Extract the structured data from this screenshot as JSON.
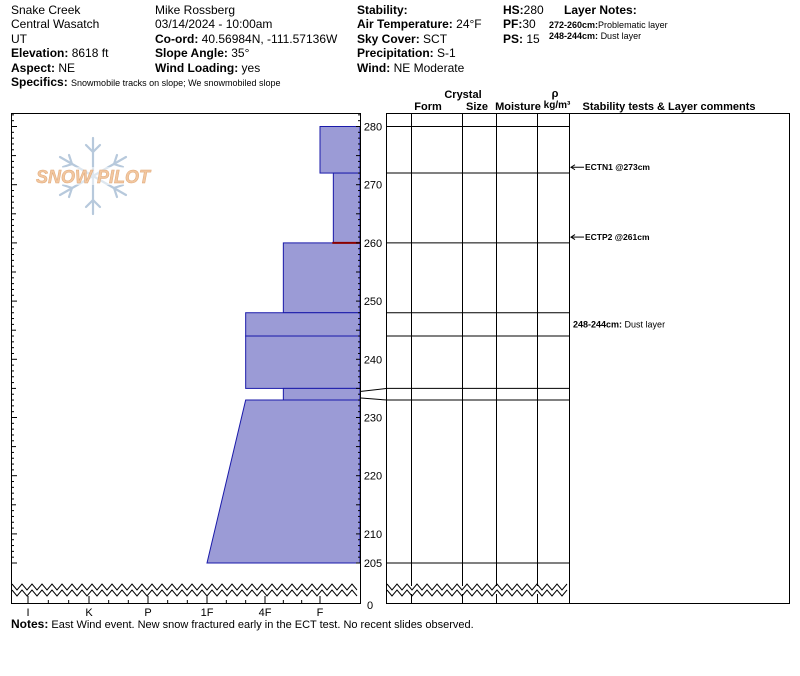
{
  "header": {
    "location": "Snake Creek",
    "range": "Central Wasatch",
    "state": "UT",
    "elevation_label": "Elevation:",
    "elevation": "8618 ft",
    "aspect_label": "Aspect:",
    "aspect": "NE",
    "specifics_label": "Specifics:",
    "specifics": "Snowmobile tracks on slope; We snowmobiled slope",
    "observer": "Mike Rossberg",
    "datetime": "03/14/2024 - 10:00am",
    "coord_label": "Co-ord:",
    "coord": "40.56984N, -111.57136W",
    "slope_label": "Slope Angle:",
    "slope": "35°",
    "wind_loading_label": "Wind Loading:",
    "wind_loading": "yes",
    "stability_label": "Stability:",
    "air_temp_label": "Air Temperature:",
    "air_temp": "24°F",
    "sky_label": "Sky Cover:",
    "sky": "SCT",
    "precip_label": "Precipitation:",
    "precip": "S-1",
    "wind_label": "Wind:",
    "wind": "NE Moderate",
    "hs_label": "HS:",
    "hs": "280",
    "pf_label": "PF:",
    "pf": "30",
    "ps_label": "PS:",
    "ps": "15",
    "layer_notes_label": "Layer Notes:",
    "layer_note_1_range": "272-260cm:",
    "layer_note_1_text": "Problematic layer",
    "layer_note_2_range": "248-244cm:",
    "layer_note_2_text": "Dust layer"
  },
  "logo": {
    "text": "SNOW PILOT"
  },
  "columns": {
    "form": "Form",
    "crystal": "Crystal",
    "size": "Size",
    "moisture": "Moisture",
    "rho": "ρ",
    "density_unit": "kg/m³",
    "stability_comments": "Stability tests & Layer comments"
  },
  "notes": {
    "label": "Notes:",
    "text": "East Wind event. New snow fractured early in the ECT test. No recent slides observed."
  },
  "colors": {
    "hardness_fill": "#9b9bd6",
    "hardness_edge": "#1a1aaa",
    "problem_layer": "#8b0000",
    "logo_orange": "#f2c7a0",
    "logo_blue": "#b7c9dc"
  },
  "chart_data": {
    "type": "bar",
    "title": "",
    "xlabel": "",
    "ylabel": "",
    "hardness_scale": [
      "I",
      "K",
      "P",
      "1F",
      "4F",
      "F"
    ],
    "y_ticks": [
      280,
      270,
      260,
      250,
      240,
      230,
      220,
      210,
      205
    ],
    "y_zero_label": "0",
    "ylim": [
      205,
      282
    ],
    "axis_break_below": 205,
    "layers": [
      {
        "top": 280,
        "bottom": 272,
        "hardness": "F"
      },
      {
        "top": 272,
        "bottom": 260,
        "hardness": "F+"
      },
      {
        "top": 260,
        "bottom": 248,
        "hardness": "4F+"
      },
      {
        "top": 248,
        "bottom": 244,
        "hardness": "4F-"
      },
      {
        "top": 244,
        "bottom": 235,
        "hardness": "4F-"
      },
      {
        "top": 235,
        "bottom": 233,
        "hardness": "4F+"
      },
      {
        "top": 233,
        "bottom": 205,
        "hardness": "4F- to 1F"
      }
    ],
    "problem_layer_at": 260,
    "layer_boundaries": [
      280,
      272,
      260,
      248,
      244,
      235,
      233,
      205
    ],
    "stability_tests": [
      {
        "label": "ECTN1 @273cm",
        "depth": 273
      },
      {
        "label": "ECTP2 @261cm",
        "depth": 261
      }
    ],
    "layer_comments": [
      {
        "range": "248-244cm:",
        "text": "Dust layer",
        "depth": 246
      }
    ]
  }
}
